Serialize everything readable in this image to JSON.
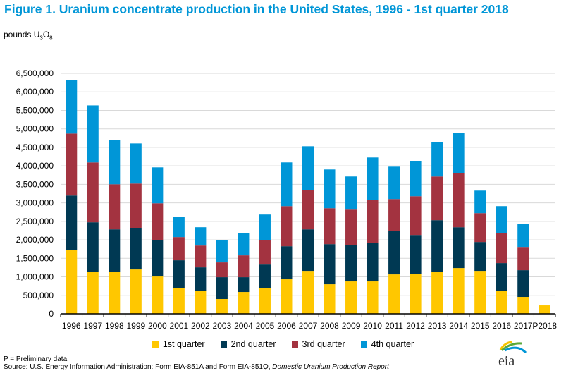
{
  "title": "Figure 1.  Uranium concentrate production in the United States, 1996 - 1st quarter 2018",
  "footer": {
    "note": "P = Preliminary data.",
    "source_prefix": "Source: U.S. Energy Information Administration: Form EIA-851A and Form EIA-851Q, ",
    "source_italic": "Domestic Uranium Production Report"
  },
  "logo_text": "eia",
  "chart_data": {
    "type": "bar",
    "stacked": true,
    "title": "Figure 1.  Uranium concentrate production in the United States, 1996 - 1st quarter 2018",
    "ylabel": "pounds U3O8",
    "ylabel_parts": {
      "base": "pounds U",
      "sub1": "3",
      "mid": "O",
      "sub2": "8"
    },
    "xlabel": "",
    "ylim": [
      0,
      6500000
    ],
    "ytick_step": 500000,
    "yticks": [
      "0",
      "500,000",
      "1,000,000",
      "1,500,000",
      "2,000,000",
      "2,500,000",
      "3,000,000",
      "3,500,000",
      "4,000,000",
      "4,500,000",
      "5,000,000",
      "5,500,000",
      "6,000,000",
      "6,500,000"
    ],
    "grid": true,
    "legend_position": "bottom",
    "categories": [
      "1996",
      "1997",
      "1998",
      "1999",
      "2000",
      "2001",
      "2002",
      "2003",
      "2004",
      "2005",
      "2006",
      "2007",
      "2008",
      "2009",
      "2010",
      "2011",
      "2012",
      "2013",
      "2014",
      "2015",
      "2016",
      "2017",
      "P2018"
    ],
    "series": [
      {
        "name": "1st quarter",
        "color": "#ffc700",
        "values": [
          1732000,
          1142000,
          1142000,
          1199000,
          1009000,
          704000,
          628000,
          400000,
          590000,
          704000,
          933000,
          1161000,
          799000,
          876000,
          876000,
          1066000,
          1085000,
          1142000,
          1237000,
          1161000,
          628000,
          457000,
          228000
        ]
      },
      {
        "name": "2nd quarter",
        "color": "#003953",
        "values": [
          1466000,
          1333000,
          1142000,
          1123000,
          990000,
          743000,
          628000,
          590000,
          400000,
          628000,
          894000,
          1123000,
          1085000,
          989000,
          1047000,
          1180000,
          1047000,
          1390000,
          1104000,
          781000,
          743000,
          723000,
          0
        ]
      },
      {
        "name": "3rd quarter",
        "color": "#a33340",
        "values": [
          1675000,
          1618000,
          1218000,
          1199000,
          989000,
          628000,
          590000,
          400000,
          590000,
          667000,
          1085000,
          1066000,
          971000,
          952000,
          1161000,
          857000,
          1047000,
          1180000,
          1466000,
          780000,
          818000,
          628000,
          0
        ]
      },
      {
        "name": "4th quarter",
        "color": "#0096d7",
        "values": [
          1447000,
          1541000,
          1200000,
          1085000,
          971000,
          552000,
          495000,
          609000,
          609000,
          685000,
          1181000,
          1180000,
          1047000,
          895000,
          1142000,
          875000,
          952000,
          933000,
          1085000,
          609000,
          723000,
          629000,
          0
        ]
      }
    ]
  }
}
